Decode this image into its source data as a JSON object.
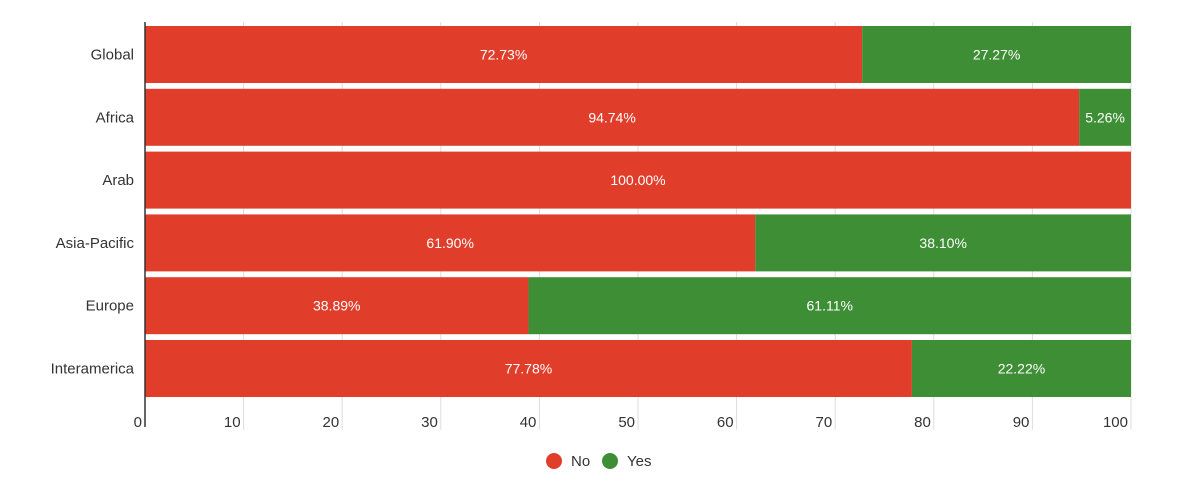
{
  "chart_data": {
    "type": "bar",
    "orientation": "horizontal",
    "stacked": true,
    "categories": [
      "Global",
      "Africa",
      "Arab",
      "Asia-Pacific",
      "Europe",
      "Interamerica"
    ],
    "series": [
      {
        "name": "No",
        "color": "#e03e2b",
        "values": [
          72.73,
          94.74,
          100.0,
          61.9,
          38.89,
          77.78
        ]
      },
      {
        "name": "Yes",
        "color": "#3e8e35",
        "values": [
          27.27,
          5.26,
          0,
          38.1,
          61.11,
          22.22
        ]
      }
    ],
    "value_labels": [
      [
        "72.73%",
        "94.74%",
        "100.00%",
        "61.90%",
        "38.89%",
        "77.78%"
      ],
      [
        "27.27%",
        "5.26%",
        "",
        "38.10%",
        "61.11%",
        "22.22%"
      ]
    ],
    "xlim": [
      0,
      100
    ],
    "xticks": [
      "0",
      "10",
      "20",
      "30",
      "40",
      "50",
      "60",
      "70",
      "80",
      "90",
      "100"
    ],
    "grid": true,
    "legend_position": "bottom"
  }
}
